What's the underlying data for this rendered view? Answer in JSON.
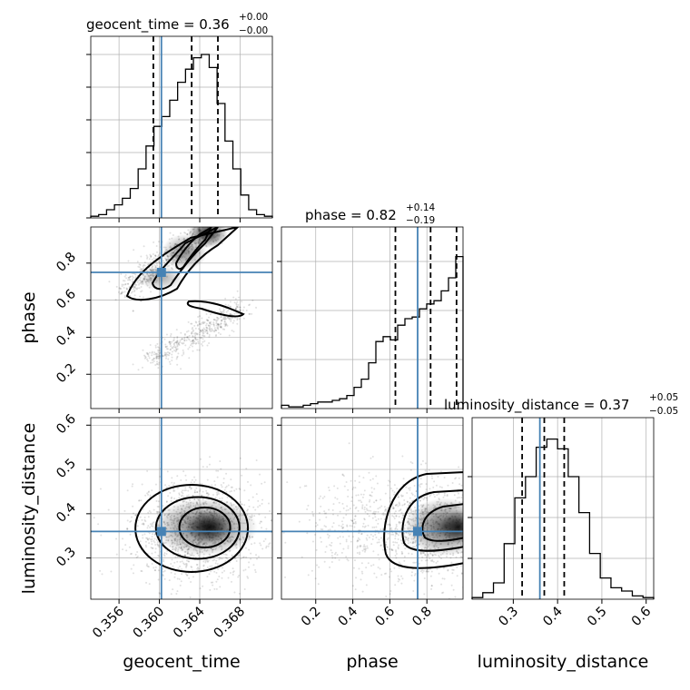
{
  "chart_data": {
    "type": "corner",
    "parameters": [
      "geocent_time",
      "phase",
      "luminosity_distance"
    ],
    "axis_labels": {
      "geocent_time": "geocent_time",
      "phase": "phase",
      "luminosity_distance": "luminosity_distance"
    },
    "titles": {
      "geocent_time": {
        "name": "geocent_time",
        "median": "0.36",
        "plus": "+0.00",
        "minus": "−0.00"
      },
      "phase": {
        "name": "phase",
        "median": "0.82",
        "plus": "+0.14",
        "minus": "−0.19"
      },
      "luminosity_distance": {
        "name": "luminosity_distance",
        "median": "0.37",
        "plus": "+0.05",
        "minus": "−0.05"
      }
    },
    "ranges": {
      "geocent_time": [
        0.3532,
        0.3712
      ],
      "phase": [
        0.015,
        0.995
      ],
      "luminosity_distance": [
        0.207,
        0.617
      ]
    },
    "ticks": {
      "geocent_time": [
        0.356,
        0.36,
        0.364,
        0.368
      ],
      "phase": [
        0.2,
        0.4,
        0.6,
        0.8
      ],
      "luminosity_distance": [
        0.3,
        0.4,
        0.5,
        0.6
      ]
    },
    "tick_labels": {
      "geocent_time": [
        "0.356",
        "0.360",
        "0.364",
        "0.368"
      ],
      "phase": [
        "0.2",
        "0.4",
        "0.6",
        "0.8"
      ],
      "luminosity_distance": [
        "0.3",
        "0.4",
        "0.5",
        "0.6"
      ]
    },
    "truths": {
      "geocent_time": 0.3602,
      "phase": 0.75,
      "luminosity_distance": 0.36
    },
    "quantiles": {
      "geocent_time": [
        0.3594,
        0.3632,
        0.3658
      ],
      "phase": [
        0.63,
        0.82,
        0.96
      ],
      "luminosity_distance": [
        0.32,
        0.37,
        0.415
      ]
    },
    "histograms": {
      "geocent_time": [
        0.01,
        0.02,
        0.05,
        0.08,
        0.12,
        0.18,
        0.3,
        0.44,
        0.56,
        0.62,
        0.72,
        0.83,
        0.91,
        0.98,
        1.0,
        0.92,
        0.7,
        0.47,
        0.3,
        0.14,
        0.05,
        0.02,
        0.01
      ],
      "phase": [
        0.02,
        0.01,
        0.01,
        0.02,
        0.03,
        0.04,
        0.04,
        0.05,
        0.06,
        0.08,
        0.13,
        0.18,
        0.28,
        0.41,
        0.44,
        0.42,
        0.51,
        0.55,
        0.56,
        0.61,
        0.64,
        0.66,
        0.72,
        0.8,
        0.93
      ],
      "luminosity_distance": [
        0.01,
        0.04,
        0.1,
        0.34,
        0.62,
        0.75,
        0.93,
        0.98,
        0.92,
        0.75,
        0.53,
        0.28,
        0.13,
        0.07,
        0.05,
        0.02,
        0.01
      ]
    },
    "colors": {
      "truth": "#4682b4",
      "hist": "#000000",
      "grid": "#b0b0b0"
    },
    "grid": true
  }
}
